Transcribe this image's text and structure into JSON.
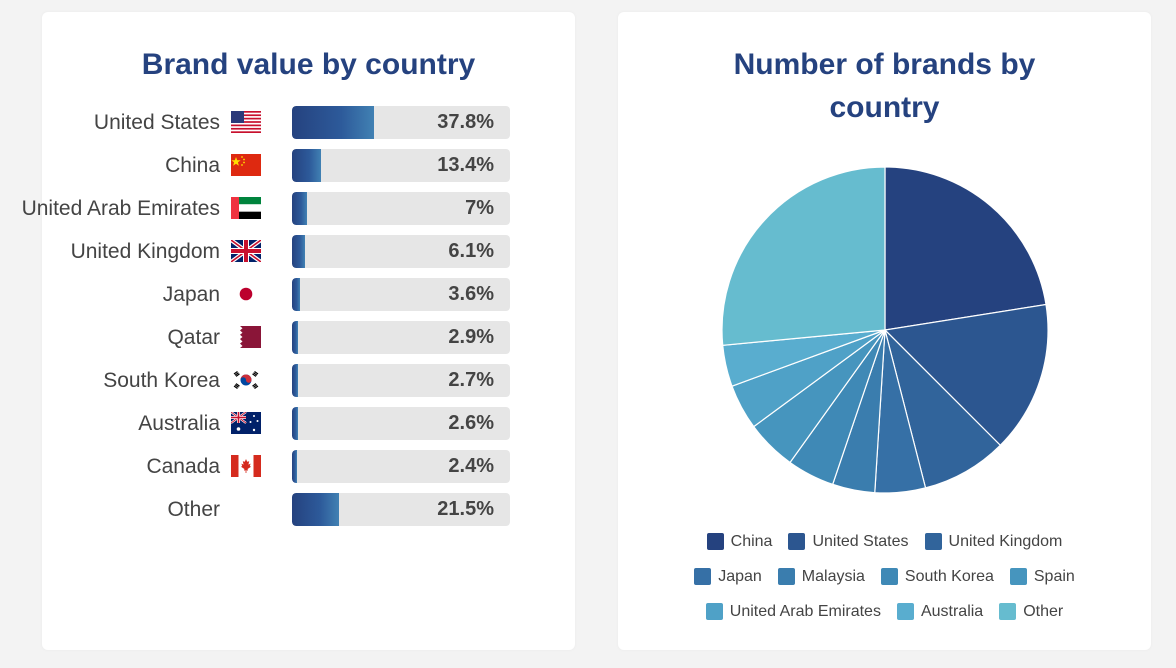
{
  "chart_data": [
    {
      "type": "bar",
      "title": "Brand value by country",
      "categories": [
        "United States",
        "China",
        "United Arab Emirates",
        "United Kingdom",
        "Japan",
        "Qatar",
        "South Korea",
        "Australia",
        "Canada",
        "Other"
      ],
      "values": [
        37.8,
        13.4,
        7,
        6.1,
        3.6,
        2.9,
        2.7,
        2.6,
        2.4,
        21.5
      ],
      "value_labels": [
        "37.8%",
        "13.4%",
        "7%",
        "6.1%",
        "3.6%",
        "2.9%",
        "2.7%",
        "2.6%",
        "2.4%",
        "21.5%"
      ],
      "flags": [
        "us-flag-icon",
        "china-flag-icon",
        "uae-flag-icon",
        "uk-flag-icon",
        "japan-flag-icon",
        "qatar-flag-icon",
        "south-korea-flag-icon",
        "australia-flag-icon",
        "canada-flag-icon",
        ""
      ],
      "unit": "%",
      "xlim": [
        0,
        100
      ]
    },
    {
      "type": "pie",
      "title": "Number of brands by country",
      "categories": [
        "China",
        "United States",
        "United Kingdom",
        "Japan",
        "Malaysia",
        "South Korea",
        "Spain",
        "United Arab Emirates",
        "Australia",
        "Other"
      ],
      "values": [
        22.5,
        15,
        8.5,
        5,
        4.2,
        4.7,
        5,
        4.5,
        4.1,
        26.5
      ],
      "colors": [
        "#25427f",
        "#2c5690",
        "#31649b",
        "#3670a6",
        "#3a7dae",
        "#3f89b6",
        "#4695be",
        "#4fa1c7",
        "#59adcf",
        "#66bccf"
      ],
      "legend_rows": [
        [
          0,
          1,
          2
        ],
        [
          3,
          4,
          5,
          6
        ],
        [
          7,
          8,
          9
        ]
      ],
      "legend_position": "bottom"
    }
  ]
}
